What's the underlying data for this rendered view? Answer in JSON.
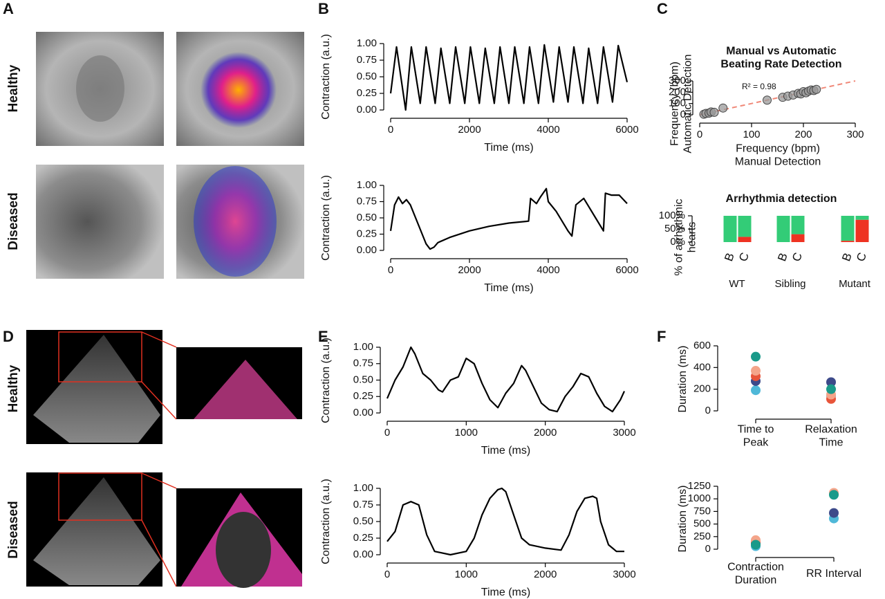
{
  "panels": [
    "A",
    "B",
    "C",
    "D",
    "E",
    "F"
  ],
  "row_labels": [
    "Healthy",
    "Diseased",
    "Healthy",
    "Diseased"
  ],
  "chart_data": [
    {
      "type": "line",
      "x_label": "Time (ms)",
      "y_label": "Contraction (a.u.)",
      "color": "#000000",
      "x": [
        0,
        150,
        380,
        525,
        750,
        900,
        1130,
        1275,
        1500,
        1650,
        1880,
        2025,
        2250,
        2400,
        2630,
        2775,
        3000,
        3150,
        3380,
        3525,
        3750,
        3900,
        4130,
        4275,
        4500,
        4650,
        4880,
        5025,
        5250,
        5400,
        5630,
        5775,
        6000
      ],
      "values": [
        0.25,
        0.95,
        0.0,
        0.95,
        0.1,
        0.95,
        0.1,
        0.93,
        0.1,
        0.95,
        0.1,
        0.95,
        0.1,
        0.93,
        0.1,
        0.95,
        0.1,
        0.95,
        0.1,
        0.95,
        0.1,
        0.98,
        0.12,
        0.95,
        0.12,
        0.95,
        0.1,
        0.93,
        0.1,
        0.95,
        0.12,
        0.97,
        0.42
      ],
      "xlim": [
        0,
        6000
      ],
      "xticks": [
        0,
        2000,
        4000,
        6000
      ],
      "ylim": [
        0,
        1
      ],
      "yticks": [
        {
          "value": 0,
          "label": "0.00"
        },
        {
          "value": 0.25,
          "label": "0.25"
        },
        {
          "value": 0.5,
          "label": "0.50"
        },
        {
          "value": 0.75,
          "label": "0.75"
        },
        {
          "value": 1,
          "label": "1.00"
        }
      ]
    },
    {
      "type": "line",
      "x_label": "Time (ms)",
      "y_label": "Contraction (a.u.)",
      "color": "#000000",
      "x": [
        0,
        100,
        200,
        300,
        400,
        500,
        700,
        900,
        1000,
        1100,
        1200,
        1500,
        2000,
        2500,
        3000,
        3500,
        3550,
        3700,
        3800,
        3950,
        4000,
        4200,
        4500,
        4600,
        4700,
        4900,
        5000,
        5200,
        5400,
        5450,
        5600,
        5800,
        6000
      ],
      "values": [
        0.3,
        0.7,
        0.82,
        0.72,
        0.78,
        0.7,
        0.4,
        0.1,
        0.02,
        0.05,
        0.12,
        0.2,
        0.3,
        0.37,
        0.42,
        0.45,
        0.8,
        0.72,
        0.82,
        0.95,
        0.75,
        0.6,
        0.3,
        0.22,
        0.7,
        0.8,
        0.7,
        0.5,
        0.3,
        0.88,
        0.85,
        0.85,
        0.72
      ],
      "xlim": [
        0,
        6000
      ],
      "xticks": [
        0,
        2000,
        4000,
        6000
      ],
      "ylim": [
        0,
        1
      ],
      "yticks": [
        {
          "value": 0,
          "label": "0.00"
        },
        {
          "value": 0.25,
          "label": "0.25"
        },
        {
          "value": 0.5,
          "label": "0.50"
        },
        {
          "value": 0.75,
          "label": "0.75"
        },
        {
          "value": 1,
          "label": "1.00"
        }
      ]
    },
    {
      "type": "line",
      "x_label": "Time (ms)",
      "y_label": "Contraction (a.u.)",
      "color": "#000000",
      "x": [
        0,
        100,
        200,
        300,
        350,
        450,
        550,
        650,
        700,
        800,
        900,
        1000,
        1100,
        1200,
        1300,
        1400,
        1500,
        1600,
        1700,
        1750,
        1850,
        1950,
        2050,
        2150,
        2250,
        2350,
        2450,
        2550,
        2650,
        2750,
        2850,
        2950,
        3000
      ],
      "values": [
        0.22,
        0.5,
        0.7,
        1.0,
        0.9,
        0.6,
        0.5,
        0.35,
        0.32,
        0.5,
        0.55,
        0.83,
        0.75,
        0.45,
        0.2,
        0.08,
        0.3,
        0.45,
        0.72,
        0.65,
        0.4,
        0.15,
        0.05,
        0.02,
        0.25,
        0.4,
        0.6,
        0.55,
        0.3,
        0.1,
        0.02,
        0.2,
        0.33
      ],
      "xlim": [
        0,
        3000
      ],
      "xticks": [
        0,
        1000,
        2000,
        3000
      ],
      "ylim": [
        0,
        1
      ],
      "yticks": [
        {
          "value": 0,
          "label": "0.00"
        },
        {
          "value": 0.25,
          "label": "0.25"
        },
        {
          "value": 0.5,
          "label": "0.50"
        },
        {
          "value": 0.75,
          "label": "0.75"
        },
        {
          "value": 1,
          "label": "1.00"
        }
      ]
    },
    {
      "type": "line",
      "x_label": "Time (ms)",
      "y_label": "Contraction (a.u.)",
      "color": "#000000",
      "x": [
        0,
        100,
        200,
        300,
        400,
        500,
        600,
        800,
        1000,
        1100,
        1200,
        1300,
        1400,
        1450,
        1500,
        1600,
        1700,
        1800,
        2000,
        2200,
        2300,
        2400,
        2500,
        2600,
        2650,
        2700,
        2800,
        2900,
        3000
      ],
      "values": [
        0.2,
        0.35,
        0.75,
        0.8,
        0.75,
        0.3,
        0.05,
        0.0,
        0.05,
        0.25,
        0.6,
        0.85,
        0.98,
        1.0,
        0.95,
        0.6,
        0.25,
        0.15,
        0.1,
        0.07,
        0.3,
        0.65,
        0.85,
        0.88,
        0.85,
        0.5,
        0.15,
        0.05,
        0.05
      ],
      "xlim": [
        0,
        3000
      ],
      "xticks": [
        0,
        1000,
        2000,
        3000
      ],
      "ylim": [
        0,
        1
      ],
      "yticks": [
        {
          "value": 0,
          "label": "0.00"
        },
        {
          "value": 0.25,
          "label": "0.25"
        },
        {
          "value": 0.5,
          "label": "0.50"
        },
        {
          "value": 0.75,
          "label": "0.75"
        },
        {
          "value": 1,
          "label": "1.00"
        }
      ]
    },
    {
      "type": "scatter",
      "title": [
        "Manual vs Automatic",
        "Beating Rate Detection"
      ],
      "x_label": [
        "Frequency (bpm)",
        "Manual Detection"
      ],
      "y_label": [
        "Frequency (bpm)",
        "Automatic Detection"
      ],
      "annotation": "R² = 0.98",
      "color": "#999999",
      "x": [
        8,
        12,
        18,
        22,
        28,
        45,
        130,
        160,
        170,
        180,
        190,
        195,
        200,
        205,
        210,
        215,
        220,
        225
      ],
      "values": [
        5,
        12,
        15,
        25,
        22,
        60,
        130,
        155,
        165,
        175,
        190,
        185,
        205,
        195,
        210,
        220,
        215,
        225
      ],
      "trend": {
        "x": [
          0,
          300
        ],
        "values": [
          0,
          300
        ],
        "color": "#f08878"
      },
      "xlim": [
        0,
        300
      ],
      "xticks": [
        0,
        100,
        200,
        300
      ],
      "ylim": [
        0,
        300
      ],
      "yticks": [
        0,
        100,
        200,
        300
      ]
    },
    {
      "type": "bar",
      "title": "Arrhythmia detection",
      "y_label": [
        "% of arrhythmic",
        "hearts"
      ],
      "categories": [
        "B",
        "C",
        "B",
        "C",
        "B",
        "C"
      ],
      "groups": [
        "WT",
        "Sibling",
        "Mutant"
      ],
      "series": [
        {
          "color": "#ee3322",
          "values": [
            0,
            20,
            0,
            30,
            5,
            85
          ]
        },
        {
          "color": "#33cc77",
          "values": [
            100,
            80,
            100,
            70,
            95,
            15
          ]
        }
      ],
      "ylim": [
        0,
        100
      ],
      "yticks": [
        {
          "value": 0,
          "label": "0%"
        },
        {
          "value": 50,
          "label": "50%"
        },
        {
          "value": 100,
          "label": "100%"
        }
      ]
    },
    {
      "type": "strip",
      "y_label": "Duration (ms)",
      "categories": [
        [
          "Time to",
          "Peak"
        ],
        [
          "Relaxation",
          "Time"
        ]
      ],
      "series": [
        {
          "color": "#4fb8d8",
          "values": [
            190,
            140
          ]
        },
        {
          "color": "#3d4a8a",
          "values": [
            275,
            265
          ]
        },
        {
          "color": "#e8553a",
          "values": [
            320,
            110
          ]
        },
        {
          "color": "#f4a58a",
          "values": [
            370,
            150
          ]
        },
        {
          "color": "#1a9a8a",
          "values": [
            500,
            200
          ]
        }
      ],
      "ylim": [
        0,
        600
      ],
      "yticks": [
        0,
        200,
        400,
        600
      ]
    },
    {
      "type": "strip",
      "y_label": "Duration (ms)",
      "categories": [
        [
          "Contraction",
          "Duration"
        ],
        [
          "RR Interval"
        ]
      ],
      "series": [
        {
          "color": "#4fb8d8",
          "values": [
            60,
            610
          ]
        },
        {
          "color": "#3d4a8a",
          "values": [
            120,
            720
          ]
        },
        {
          "color": "#e8553a",
          "values": [
            150,
            1100
          ]
        },
        {
          "color": "#f4a58a",
          "values": [
            180,
            1120
          ]
        },
        {
          "color": "#1a9a8a",
          "values": [
            90,
            1080
          ]
        }
      ],
      "ylim": [
        0,
        1250
      ],
      "yticks": [
        0,
        250,
        500,
        750,
        1000,
        1250
      ]
    }
  ]
}
